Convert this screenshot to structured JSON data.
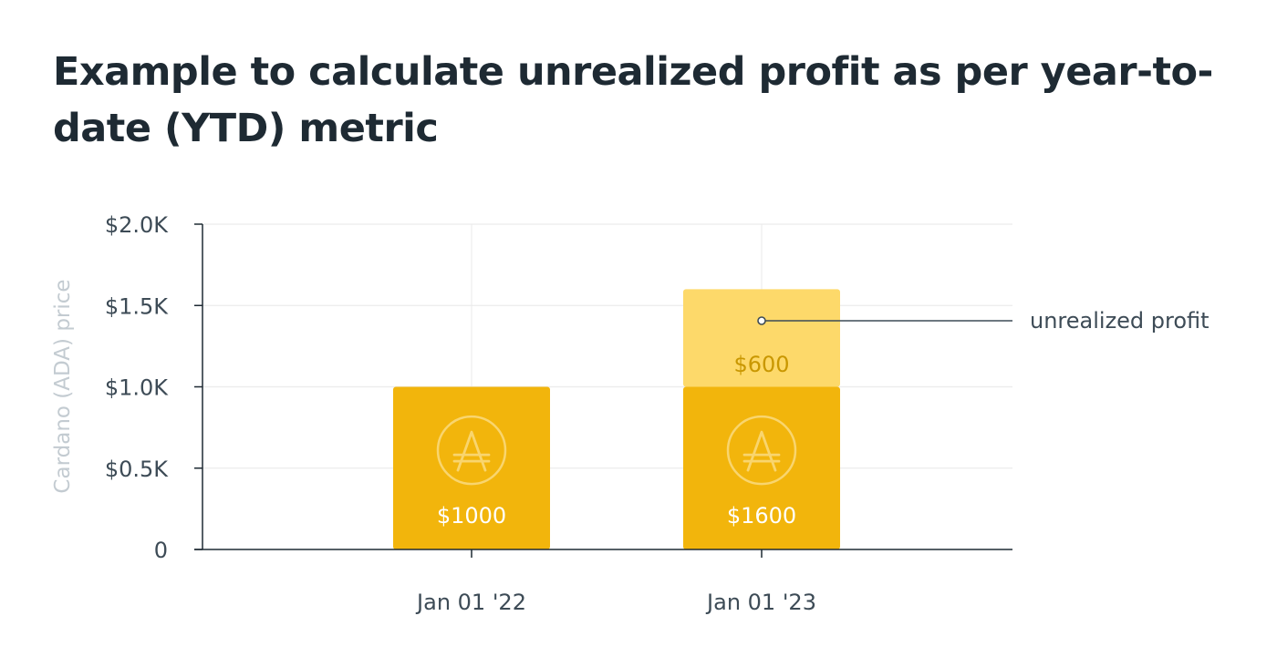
{
  "title": "Example to calculate unrealized profit as per year-to-date (YTD) metric",
  "colors": {
    "bar": "#f2b50c",
    "profit": "#fdd96a",
    "profit_text": "#c99700",
    "axis": "#1e2a33",
    "grid": "#ececec",
    "coin_ring": "#f9d56e"
  },
  "icons": {
    "coin": "cardano-ada-icon"
  },
  "chart_data": {
    "type": "bar",
    "stacked": true,
    "categories": [
      "Jan 01 '22",
      "Jan 01 '23"
    ],
    "series": [
      {
        "values": [
          1000,
          1000
        ]
      },
      {
        "values": [
          0,
          600
        ]
      }
    ],
    "bar_labels": [
      "$1000",
      "$1600"
    ],
    "profit_label": "$600",
    "annotation": "unrealized profit",
    "ylabel": "Cardano (ADA) price",
    "xlabel": "",
    "ylim": [
      0,
      2000
    ],
    "yticks": [
      {
        "value": 0,
        "label": "0"
      },
      {
        "value": 500,
        "label": "$0.5K"
      },
      {
        "value": 1000,
        "label": "$1.0K"
      },
      {
        "value": 1500,
        "label": "$1.5K"
      },
      {
        "value": 2000,
        "label": "$2.0K"
      }
    ],
    "grid": true,
    "legend": "none"
  }
}
